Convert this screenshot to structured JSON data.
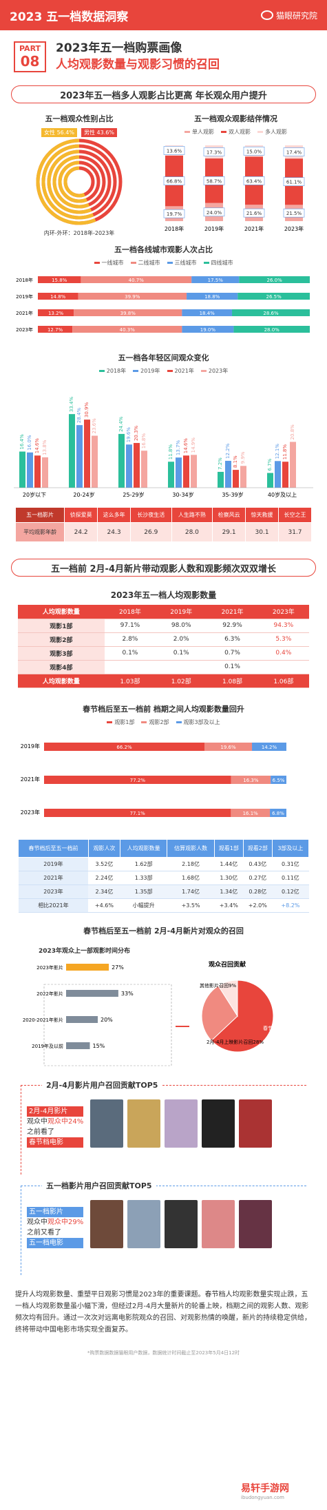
{
  "header": {
    "title": "2023 五一档数据洞察",
    "logo": "猫眼研究院"
  },
  "part": {
    "label": "PART",
    "num": "08",
    "title1": "2023年五一档购票画像",
    "title2": "人均观影数量与观影习惯的召回"
  },
  "banner1": "2023年五一档多人观影占比更高  年长观众用户提升",
  "gender": {
    "title": "五一档观众性别占比",
    "female": "女性 56.4%",
    "male": "男性 43.6%",
    "note": "内环-外环：2018年-2023年"
  },
  "structure": {
    "title": "五一档观众观影结伴情况",
    "legend": [
      "单人观影",
      "双人观影",
      "多人观影"
    ],
    "years": [
      "2018年",
      "2019年",
      "2021年",
      "2023年"
    ],
    "single": [
      "19.7%",
      "24.0%",
      "21.6%",
      "21.5%"
    ],
    "double": [
      "66.8%",
      "58.7%",
      "63.4%",
      "61.1%"
    ],
    "multi": [
      "13.6%",
      "17.3%",
      "15.0%",
      "17.4%"
    ]
  },
  "city": {
    "title": "五一档各线城市观影人次占比",
    "legend": [
      "一线城市",
      "二线城市",
      "三线城市",
      "四线城市"
    ],
    "years": [
      "2018年",
      "2019年",
      "2021年",
      "2023年"
    ],
    "vals": [
      [
        "15.8%",
        "40.7%",
        "17.5%",
        "26.0%"
      ],
      [
        "14.8%",
        "39.9%",
        "18.8%",
        "26.5%"
      ],
      [
        "13.2%",
        "39.8%",
        "18.4%",
        "28.6%"
      ],
      [
        "12.7%",
        "40.3%",
        "19.0%",
        "28.0%"
      ]
    ]
  },
  "age": {
    "title": "五一档各年轻区间观众变化",
    "legend": [
      "2018年",
      "2019年",
      "2021年",
      "2023年"
    ],
    "groups": [
      "20岁以下",
      "20-24岁",
      "25-29岁",
      "30-34岁",
      "35-39岁",
      "40岁及以上"
    ],
    "labels": [
      [
        "16.4%",
        "16.0%",
        "14.6%",
        "13.8%"
      ],
      [
        "33.4%",
        "28.4%",
        "30.9%",
        "23.6%"
      ],
      [
        "24.4%",
        "19.6%",
        "20.3%",
        "16.8%"
      ],
      [
        "11.8%",
        "13.7%",
        "14.6%",
        "14.9%"
      ],
      [
        "7.2%",
        "12.2%",
        "8.1%",
        "9.9%"
      ],
      [
        "6.7%",
        "12.1%",
        "11.8%",
        "20.8%"
      ]
    ]
  },
  "movies_age": {
    "head": [
      "五一档影片",
      "侦探爱莫",
      "这么多年",
      "长沙夜生活",
      "人生路不熟",
      "检察风云",
      "惊天救援",
      "长空之王"
    ],
    "rowlabel": "平均观影年龄",
    "vals": [
      "24.2",
      "24.3",
      "26.9",
      "28.0",
      "29.1",
      "30.1",
      "31.7"
    ]
  },
  "banner2": "五一档前 2月-4月新片带动观影人数和观影频次双双增长",
  "per": {
    "title": "2023年五一档人均观影数量",
    "head": [
      "人均观影数量",
      "2018年",
      "2019年",
      "2021年",
      "2023年"
    ],
    "rows": [
      [
        "观影1部",
        "97.1%",
        "98.0%",
        "92.9%",
        "94.3%"
      ],
      [
        "观影2部",
        "2.8%",
        "2.0%",
        "6.3%",
        "5.3%"
      ],
      [
        "观影3部",
        "0.1%",
        "0.1%",
        "0.7%",
        "0.4%"
      ],
      [
        "观影4部",
        "",
        "",
        "0.1%",
        ""
      ]
    ],
    "total": [
      "人均观影数量",
      "1.03部",
      "1.02部",
      "1.08部",
      "1.06部"
    ]
  },
  "spring": {
    "title": "春节档后至五一档前 档期之间人均观影数量回升",
    "legend": [
      "观影1部",
      "观影2部",
      "观影3部及以上"
    ],
    "years": [
      "2019年",
      "2021年",
      "2023年"
    ],
    "vals": [
      [
        "66.2%",
        "19.6%",
        "14.2%"
      ],
      [
        "77.2%",
        "16.3%",
        "6.5%"
      ],
      [
        "77.1%",
        "16.1%",
        "6.8%"
      ]
    ]
  },
  "stat": {
    "head": [
      "春节档后至五一档前",
      "观影人次",
      "人均观影数量",
      "估算观影人数",
      "观看1部",
      "观看2部",
      "3部及以上"
    ],
    "rows": [
      [
        "2019年",
        "3.52亿",
        "1.62部",
        "2.18亿",
        "1.44亿",
        "0.43亿",
        "0.31亿"
      ],
      [
        "2021年",
        "2.24亿",
        "1.33部",
        "1.68亿",
        "1.30亿",
        "0.27亿",
        "0.11亿"
      ],
      [
        "2023年",
        "2.34亿",
        "1.35部",
        "1.74亿",
        "1.34亿",
        "0.28亿",
        "0.12亿"
      ],
      [
        "相比2021年",
        "+4.6%",
        "小幅提升",
        "+3.5%",
        "+3.4%",
        "+2.0%",
        "+8.2%"
      ]
    ]
  },
  "recall": {
    "title": "春节档后至五一档前 2月-4月新片对观众的召回",
    "dist_title": "2023年观众上一部观影时间分布",
    "cats": [
      "2023年影片",
      "2022年影片",
      "2020-2021年影片",
      "2019年及以前"
    ],
    "vals": [
      27,
      33,
      20,
      15
    ],
    "vlabels": [
      "27%",
      "33%",
      "20%",
      "15%"
    ],
    "pie_title": "观众召回贡献",
    "pie_a": "春节档影片召回63%",
    "pie_b": "2月-4月上映影片召回28%",
    "pie_c": "其他影片召回9%"
  },
  "top1": {
    "title": "2月-4月影片用户召回贡献TOP5",
    "lines": [
      "2月-4月影片",
      "观众中24%",
      "之前看了",
      "春节档电影"
    ]
  },
  "top2": {
    "title": "五一档影片用户召回贡献TOP5",
    "lines": [
      "五一档影片",
      "观众中29%",
      "之前又看了",
      "五一档电影"
    ]
  },
  "summary": "提升人均观影数量、重塑平日观影习惯是2023年的重要课题。春节档人均观影数量实现止跌，五一档人均观影数量虽小幅下滑，但经过2月-4月大量新片的轮番上映，档期之间的观影人数、观影频次均有回升。通过一次次对远离电影院观众的召回、对观影热情的唤醒，新片的持续稳定供给，终将带动中国电影市场实现全面复苏。",
  "source": "*购票数据数据猫眼用户数据，数据统计时间截止至2023年5月4日12时",
  "watermark": "易轩手游网",
  "watermark_sub": "ibudongyuan.com"
}
